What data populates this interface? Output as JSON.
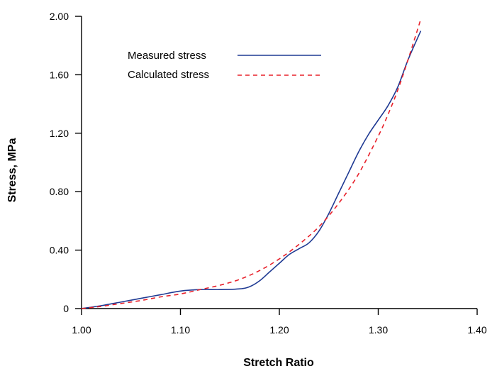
{
  "chart_data": {
    "type": "line",
    "xlabel": "Stretch Ratio",
    "ylabel": "Stress, MPa",
    "xlim": [
      1.0,
      1.4
    ],
    "ylim": [
      0,
      2.0
    ],
    "x_ticks": [
      "1.00",
      "1.10",
      "1.20",
      "1.30",
      "1.40"
    ],
    "y_ticks": [
      "0",
      "0.40",
      "0.80",
      "1.20",
      "1.60",
      "2.00"
    ],
    "x_tick_values": [
      1.0,
      1.1,
      1.2,
      1.3,
      1.4
    ],
    "y_tick_values": [
      0,
      0.4,
      0.8,
      1.2,
      1.6,
      2.0
    ],
    "grid": false,
    "legend_position": "top-left",
    "series": [
      {
        "name": "Measured stress",
        "color": "#1f3a93",
        "style": "solid",
        "x": [
          1.0,
          1.02,
          1.04,
          1.06,
          1.08,
          1.1,
          1.12,
          1.14,
          1.16,
          1.17,
          1.18,
          1.19,
          1.2,
          1.21,
          1.22,
          1.23,
          1.24,
          1.25,
          1.26,
          1.27,
          1.28,
          1.29,
          1.3,
          1.31,
          1.32,
          1.33,
          1.343
        ],
        "y": [
          0,
          0.02,
          0.045,
          0.07,
          0.095,
          0.12,
          0.13,
          0.13,
          0.135,
          0.15,
          0.19,
          0.25,
          0.31,
          0.37,
          0.41,
          0.45,
          0.53,
          0.65,
          0.79,
          0.93,
          1.07,
          1.19,
          1.29,
          1.39,
          1.52,
          1.7,
          1.9
        ]
      },
      {
        "name": "Calculated stress",
        "color": "#e8202a",
        "style": "dashed",
        "x": [
          1.0,
          1.02,
          1.04,
          1.06,
          1.08,
          1.1,
          1.12,
          1.14,
          1.16,
          1.18,
          1.2,
          1.22,
          1.24,
          1.26,
          1.28,
          1.3,
          1.31,
          1.32,
          1.33,
          1.343
        ],
        "y": [
          0,
          0.015,
          0.035,
          0.055,
          0.08,
          0.1,
          0.13,
          0.16,
          0.2,
          0.26,
          0.34,
          0.44,
          0.56,
          0.72,
          0.92,
          1.18,
          1.33,
          1.5,
          1.7,
          1.98
        ]
      }
    ]
  }
}
